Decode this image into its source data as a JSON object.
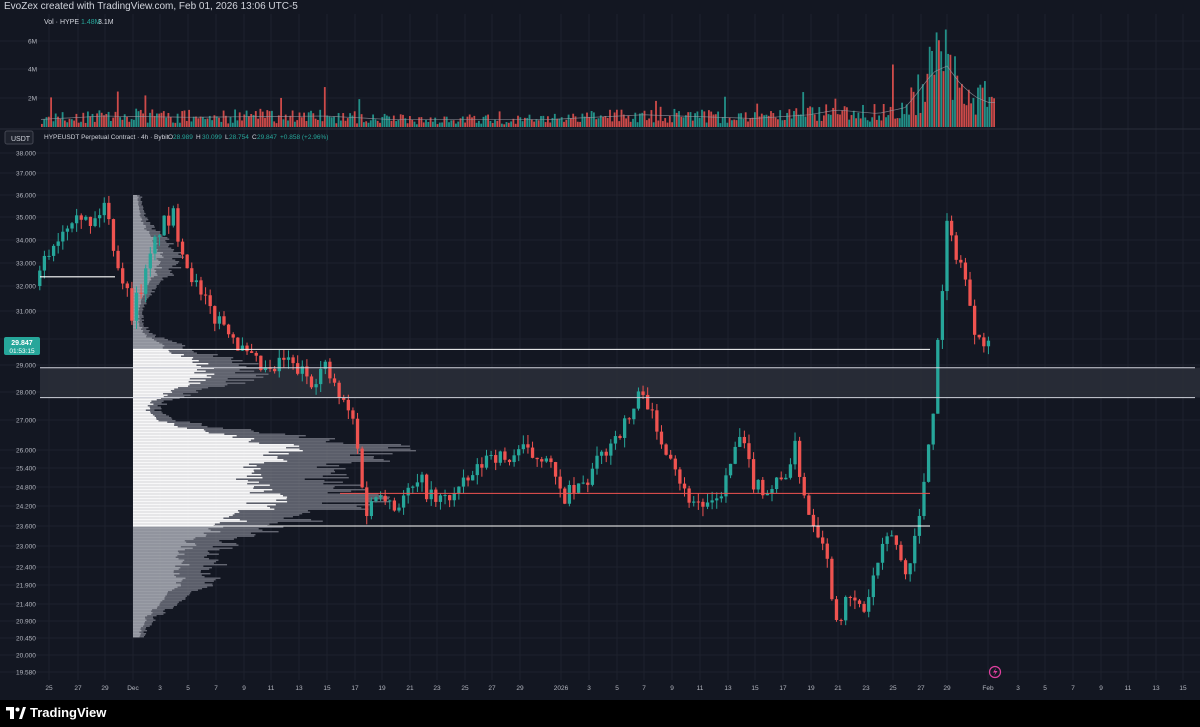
{
  "header": {
    "credit": "EvoZex created with TradingView.com, Feb 01, 2026 13:06 UTC-5"
  },
  "volume_pane": {
    "label": "Vol · HYPE",
    "value_sma": "1.48M",
    "value_vol": "3.1M",
    "axis_ticks": [
      "6M",
      "4M",
      "2M"
    ]
  },
  "price_pane": {
    "currency_button": "USDT",
    "symbol_line": "HYPEUSDT Perpetual Contract · 4h · Bybit",
    "ohlc": {
      "o_label": "O",
      "o": "28.989",
      "h_label": "H",
      "h": "30.099",
      "l_label": "L",
      "l": "28.754",
      "c_label": "C",
      "c": "29.847",
      "chg": "+0.858 (+2.96%)"
    },
    "current_price": "29.847",
    "countdown": "01:53:15",
    "axis_ticks": [
      "38.000",
      "37.000",
      "36.000",
      "35.000",
      "34.000",
      "33.000",
      "32.000",
      "31.000",
      "30.000",
      "29.000",
      "28.000",
      "27.000",
      "26.000",
      "25.400",
      "24.800",
      "24.200",
      "23.600",
      "23.000",
      "22.400",
      "21.900",
      "21.400",
      "20.900",
      "20.450",
      "20.000",
      "19.580"
    ],
    "time_ticks": [
      "25",
      "27",
      "29",
      "Dec",
      "3",
      "5",
      "7",
      "9",
      "11",
      "13",
      "15",
      "17",
      "19",
      "21",
      "23",
      "25",
      "27",
      "29",
      "2026",
      "3",
      "5",
      "7",
      "9",
      "11",
      "13",
      "15",
      "17",
      "19",
      "21",
      "23",
      "25",
      "27",
      "29",
      "Feb",
      "3",
      "5",
      "7",
      "9",
      "11",
      "13",
      "15"
    ]
  },
  "colors": {
    "up": "#26a69a",
    "down": "#ef5350",
    "bg": "#131722",
    "grid": "#1e222d",
    "text": "#b2b5be",
    "profile_white": "#ffffff",
    "profile_grey": "#787b86",
    "zone_fill": "#2a2e39",
    "poc_line": "#ef5350"
  },
  "chart_data": {
    "type": "candlestick",
    "title": "HYPEUSDT Perpetual Contract · 4h · Bybit",
    "y_scale": "log",
    "ylim": [
      19.58,
      38.0
    ],
    "x_range": [
      "Nov 25",
      "Feb 15"
    ],
    "levels": {
      "value_area_high": 29.6,
      "value_area_low": 23.6,
      "poc": 24.6,
      "zone_top": 28.9,
      "zone_bottom": 27.8,
      "nov_level": 32.4
    },
    "price_path": [
      {
        "x": "Nov 24",
        "y": 32.0
      },
      {
        "x": "Nov 25",
        "y": 33.5
      },
      {
        "x": "Nov 27",
        "y": 35.5
      },
      {
        "x": "Nov 28",
        "y": 34.5
      },
      {
        "x": "Nov 29",
        "y": 35.6
      },
      {
        "x": "Nov 30",
        "y": 33.0
      },
      {
        "x": "Dec 1",
        "y": 31.0
      },
      {
        "x": "Dec 2",
        "y": 32.5
      },
      {
        "x": "Dec 3",
        "y": 34.5
      },
      {
        "x": "Dec 4",
        "y": 35.0
      },
      {
        "x": "Dec 5",
        "y": 33.0
      },
      {
        "x": "Dec 6",
        "y": 31.5
      },
      {
        "x": "Dec 7",
        "y": 30.8
      },
      {
        "x": "Dec 8",
        "y": 30.5
      },
      {
        "x": "Dec 9",
        "y": 29.5
      },
      {
        "x": "Dec 10",
        "y": 29.0
      },
      {
        "x": "Dec 11",
        "y": 28.6
      },
      {
        "x": "Dec 12",
        "y": 29.2
      },
      {
        "x": "Dec 13",
        "y": 28.8
      },
      {
        "x": "Dec 14",
        "y": 28.5
      },
      {
        "x": "Dec 15",
        "y": 28.9
      },
      {
        "x": "Dec 16",
        "y": 27.8
      },
      {
        "x": "Dec 17",
        "y": 27.0
      },
      {
        "x": "Dec 18",
        "y": 24.0
      },
      {
        "x": "Dec 19",
        "y": 24.8
      },
      {
        "x": "Dec 20",
        "y": 24.2
      },
      {
        "x": "Dec 21",
        "y": 24.6
      },
      {
        "x": "Dec 22",
        "y": 24.9
      },
      {
        "x": "Dec 23",
        "y": 24.3
      },
      {
        "x": "Dec 24",
        "y": 24.5
      },
      {
        "x": "Dec 25",
        "y": 24.8
      },
      {
        "x": "Dec 26",
        "y": 25.3
      },
      {
        "x": "Dec 27",
        "y": 26.0
      },
      {
        "x": "Dec 28",
        "y": 25.6
      },
      {
        "x": "Dec 29",
        "y": 26.0
      },
      {
        "x": "Dec 30",
        "y": 25.8
      },
      {
        "x": "Dec 31",
        "y": 25.9
      },
      {
        "x": "Jan 1",
        "y": 24.5
      },
      {
        "x": "Jan 2",
        "y": 24.6
      },
      {
        "x": "Jan 3",
        "y": 25.0
      },
      {
        "x": "Jan 4",
        "y": 25.8
      },
      {
        "x": "Jan 5",
        "y": 26.5
      },
      {
        "x": "Jan 6",
        "y": 27.0
      },
      {
        "x": "Jan 7",
        "y": 28.2
      },
      {
        "x": "Jan 8",
        "y": 26.5
      },
      {
        "x": "Jan 9",
        "y": 26.0
      },
      {
        "x": "Jan 10",
        "y": 24.6
      },
      {
        "x": "Jan 11",
        "y": 24.3
      },
      {
        "x": "Jan 12",
        "y": 24.1
      },
      {
        "x": "Jan 13",
        "y": 25.0
      },
      {
        "x": "Jan 14",
        "y": 26.4
      },
      {
        "x": "Jan 15",
        "y": 25.0
      },
      {
        "x": "Jan 16",
        "y": 24.7
      },
      {
        "x": "Jan 17",
        "y": 25.0
      },
      {
        "x": "Jan 18",
        "y": 26.0
      },
      {
        "x": "Jan 19",
        "y": 24.0
      },
      {
        "x": "Jan 20",
        "y": 23.3
      },
      {
        "x": "Jan 21",
        "y": 21.0
      },
      {
        "x": "Jan 22",
        "y": 21.5
      },
      {
        "x": "Jan 23",
        "y": 21.2
      },
      {
        "x": "Jan 24",
        "y": 22.5
      },
      {
        "x": "Jan 25",
        "y": 23.4
      },
      {
        "x": "Jan 26",
        "y": 22.2
      },
      {
        "x": "Jan 27",
        "y": 23.8
      },
      {
        "x": "Jan 28",
        "y": 27.5
      },
      {
        "x": "Jan 29",
        "y": 34.5
      },
      {
        "x": "Jan 30",
        "y": 33.0
      },
      {
        "x": "Jan 31",
        "y": 30.5
      },
      {
        "x": "Feb 1",
        "y": 29.85
      }
    ],
    "volume_path": [
      {
        "x": "Nov 24",
        "y": 0.6
      },
      {
        "x": "Nov 29",
        "y": 0.9
      },
      {
        "x": "Dec 5",
        "y": 0.8
      },
      {
        "x": "Dec 15",
        "y": 0.9
      },
      {
        "x": "Dec 20",
        "y": 0.6
      },
      {
        "x": "Dec 31",
        "y": 0.6
      },
      {
        "x": "Jan 7",
        "y": 1.0
      },
      {
        "x": "Jan 15",
        "y": 0.7
      },
      {
        "x": "Jan 19",
        "y": 1.0
      },
      {
        "x": "Jan 21",
        "y": 1.4
      },
      {
        "x": "Jan 24",
        "y": 1.1
      },
      {
        "x": "Jan 26",
        "y": 1.6
      },
      {
        "x": "Jan 27",
        "y": 3.0
      },
      {
        "x": "Jan 28",
        "y": 4.5
      },
      {
        "x": "Jan 29",
        "y": 5.0
      },
      {
        "x": "Jan 30",
        "y": 3.5
      },
      {
        "x": "Jan 31",
        "y": 2.5
      },
      {
        "x": "Feb 1",
        "y": 2.0
      }
    ]
  },
  "footer": {
    "brand": "TradingView"
  }
}
